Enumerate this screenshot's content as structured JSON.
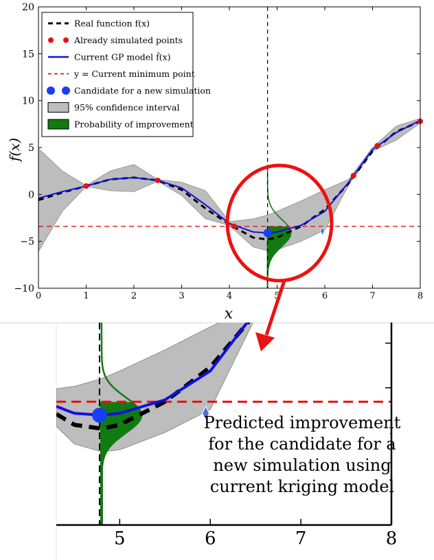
{
  "chart_data": [
    {
      "type": "line",
      "panel": "main",
      "xlabel": "x",
      "ylabel": "f(x)",
      "xlim": [
        0,
        8
      ],
      "ylim": [
        -10,
        20
      ],
      "xticks": [
        "0",
        "1",
        "2",
        "3",
        "4",
        "5",
        "6",
        "7",
        "8"
      ],
      "yticks": [
        "−10",
        "−5",
        "0",
        "5",
        "10",
        "15",
        "20"
      ],
      "grid": false,
      "legend_position": "top-left",
      "legend": [
        {
          "label": "Real function f(x)",
          "style": "dashed-black"
        },
        {
          "label": "Already simulated points",
          "style": "red-dots"
        },
        {
          "label": "Current GP model f̂(x)",
          "style": "blue-line"
        },
        {
          "label": "y = Current minimum point",
          "style": "red-dashed"
        },
        {
          "label": "Candidate for a new simulation",
          "style": "blue-dots"
        },
        {
          "label": "95% confidence interval",
          "style": "gray-box"
        },
        {
          "label": "Probability of improvement",
          "style": "green-box"
        }
      ],
      "current_minimum_y": -3.4,
      "candidate_x": 4.8,
      "candidate_y": -4.1,
      "simulated_points": [
        {
          "x": 1.0,
          "y": 0.9
        },
        {
          "x": 2.5,
          "y": 1.5
        },
        {
          "x": 4.1,
          "y": -3.4
        },
        {
          "x": 6.6,
          "y": 2.0
        },
        {
          "x": 7.1,
          "y": 5.2
        },
        {
          "x": 8.0,
          "y": 7.8
        }
      ],
      "series": [
        {
          "name": "Real function f(x)",
          "x": [
            0,
            0.5,
            1.0,
            1.5,
            2.0,
            2.5,
            3.0,
            3.5,
            4.0,
            4.5,
            4.8,
            5.0,
            5.5,
            6.0,
            6.5,
            7.0,
            7.5,
            8.0
          ],
          "y": [
            -0.6,
            0.2,
            0.9,
            1.6,
            1.8,
            1.5,
            0.5,
            -1.5,
            -3.2,
            -4.6,
            -4.8,
            -4.6,
            -3.4,
            -1.6,
            1.2,
            4.6,
            6.7,
            7.8
          ]
        },
        {
          "name": "Current GP model f̂(x)",
          "x": [
            0,
            0.5,
            1.0,
            1.5,
            2.0,
            2.5,
            3.0,
            3.5,
            4.0,
            4.5,
            4.8,
            5.0,
            5.5,
            6.0,
            6.5,
            7.0,
            7.5,
            8.0
          ],
          "y": [
            -0.4,
            0.3,
            0.9,
            1.6,
            1.8,
            1.5,
            0.7,
            -1.1,
            -3.1,
            -4.0,
            -4.1,
            -4.0,
            -3.3,
            -1.8,
            1.3,
            4.8,
            6.6,
            7.9
          ]
        },
        {
          "name": "95% confidence interval",
          "x": [
            0,
            0.5,
            1.0,
            1.5,
            2.0,
            2.5,
            3.0,
            3.5,
            4.0,
            4.5,
            4.8,
            5.0,
            5.5,
            6.0,
            6.5,
            7.0,
            7.5,
            8.0
          ],
          "upper": [
            4.9,
            2.5,
            0.95,
            2.5,
            3.2,
            1.6,
            1.3,
            0.4,
            -2.9,
            -2.6,
            -2.2,
            -1.8,
            -0.7,
            0.5,
            1.6,
            5.0,
            7.3,
            8.1
          ],
          "lower": [
            -6.1,
            -1.8,
            0.85,
            0.4,
            0.3,
            1.4,
            -0.1,
            -2.6,
            -3.3,
            -5.6,
            -6.0,
            -5.9,
            -5.0,
            -3.8,
            1.0,
            4.6,
            5.8,
            7.6
          ]
        }
      ],
      "annotations": []
    },
    {
      "type": "line",
      "panel": "zoom",
      "xlim": [
        4.3,
        8
      ],
      "xticks": [
        "5",
        "6",
        "7",
        "8"
      ],
      "annotations": [
        "Predicted improvement for the candidate for a new simulation using current kriging model"
      ]
    }
  ],
  "main": {
    "xlabel": "x",
    "ylabel": "f(x)",
    "legend_items": [
      "Real function f(x)",
      "Already simulated points",
      "Current GP model f̂(x)",
      "y = Current minimum point",
      "Candidate for a new simulation",
      "95% confidence interval",
      "Probability of improvement"
    ]
  },
  "zoom": {
    "annotation_lines": [
      "Predicted improvement",
      "for the candidate for a",
      "new simulation using",
      "current kriging model"
    ]
  },
  "colors": {
    "real": "#000000",
    "gp": "#1010e0",
    "points": "#e81010",
    "minline": "#e81010",
    "candidate": "#1a3ef5",
    "ci": "#bdbdbd",
    "improvement": "#127a12",
    "highlight": "#ee1111"
  }
}
